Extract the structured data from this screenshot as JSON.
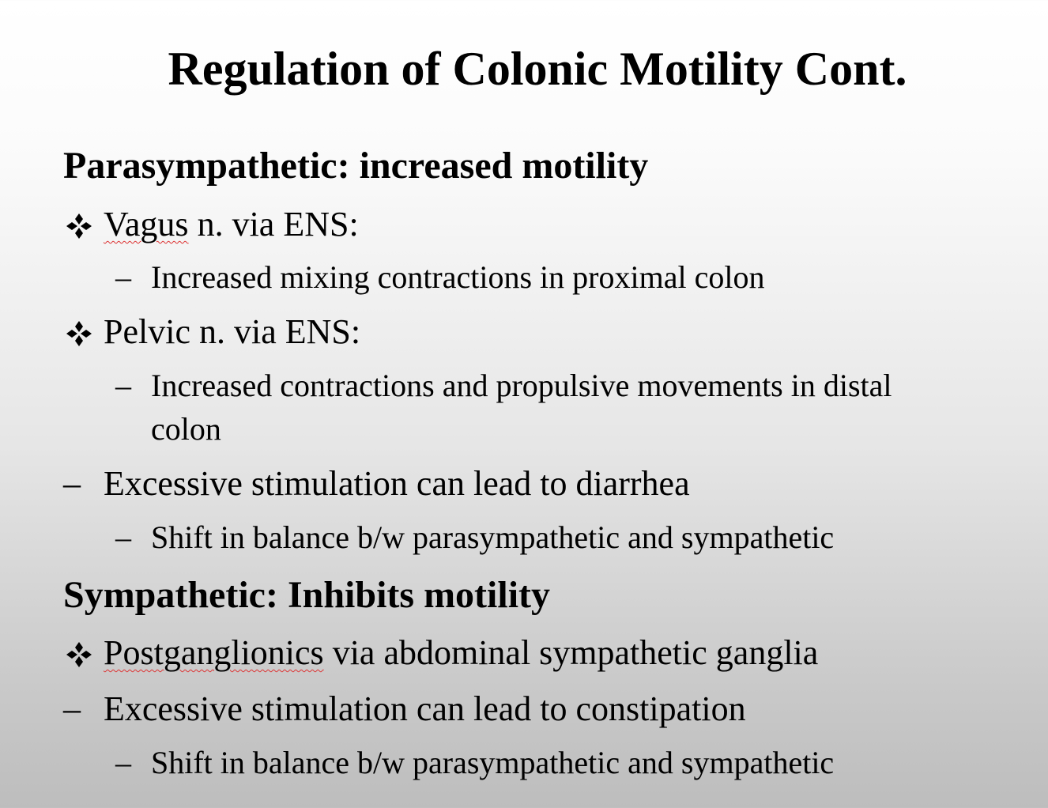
{
  "slide": {
    "title": "Regulation of Colonic Motility Cont.",
    "sections": {
      "parasympathetic": {
        "heading": "Parasympathetic: increased motility",
        "items": {
          "vagus": {
            "bullet": "❖",
            "word_underlined": "Vagus",
            "rest": " n. via ENS:"
          },
          "vagus_sub": {
            "bullet": "–",
            "text": "Increased mixing contractions in proximal colon"
          },
          "pelvic": {
            "bullet": "❖",
            "text": "Pelvic n. via ENS:"
          },
          "pelvic_sub": {
            "bullet": "–",
            "text_line1": "Increased contractions and propulsive movements in distal",
            "text_line2": "colon"
          },
          "excess": {
            "bullet": "–",
            "text": "Excessive stimulation can lead to diarrhea"
          },
          "excess_sub": {
            "bullet": "–",
            "text": "Shift in balance b/w parasympathetic and sympathetic"
          }
        }
      },
      "sympathetic": {
        "heading": "Sympathetic: Inhibits motility",
        "items": {
          "postganglionics": {
            "bullet": "❖",
            "word_underlined": "Postganglionics",
            "rest": " via abdominal sympathetic ganglia"
          },
          "excess": {
            "bullet": "–",
            "text": "Excessive stimulation can lead to constipation"
          },
          "excess_sub": {
            "bullet": "–",
            "text": "Shift in balance b/w parasympathetic and sympathetic"
          }
        }
      }
    },
    "icons": {
      "bullet": "four-diamond-bullet-icon"
    },
    "colors": {
      "spellcheck_underline": "#d33",
      "text": "#000000"
    }
  }
}
